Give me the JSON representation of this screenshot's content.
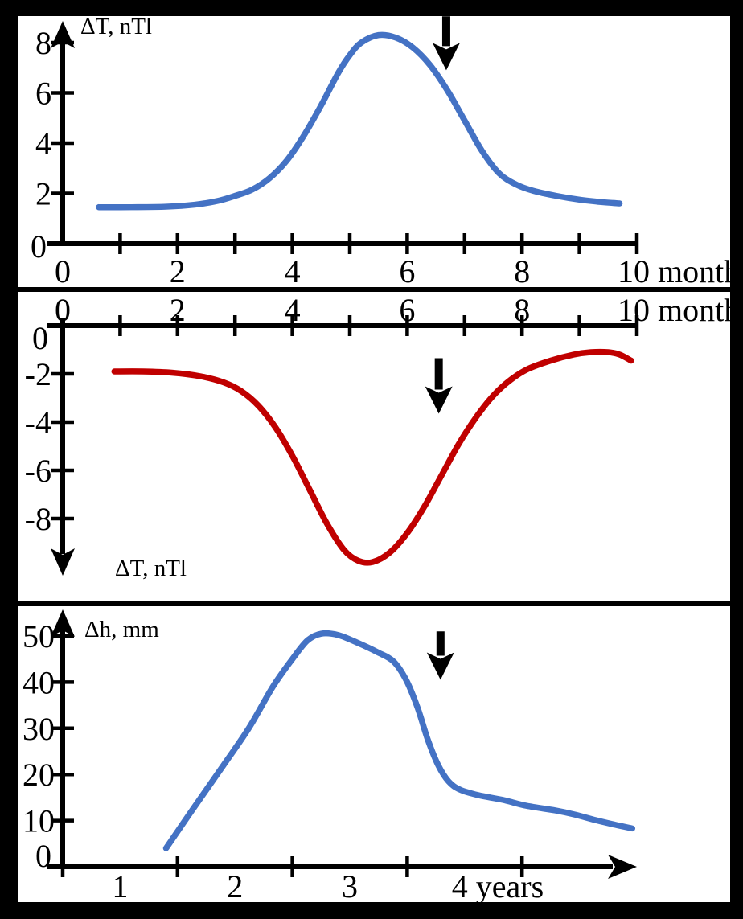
{
  "figure": {
    "background_color": "#000000",
    "panel_background": "#ffffff",
    "axis_color": "#000000"
  },
  "chart_data": [
    {
      "type": "line",
      "title": "",
      "ylabel": "ΔT, nTl",
      "xlabel": "months",
      "color": "#4472C4",
      "y_axis_direction": "up",
      "x_axis_position": "bottom",
      "xlim": [
        0,
        10
      ],
      "ylim": [
        0,
        9
      ],
      "x_tick_marks": [
        1,
        2,
        3,
        4,
        5,
        6,
        7,
        8,
        9,
        10
      ],
      "x_tick_labels": [
        {
          "value": 0,
          "label": "0"
        },
        {
          "value": 2,
          "label": "2"
        },
        {
          "value": 4,
          "label": "4"
        },
        {
          "value": 6,
          "label": "6"
        },
        {
          "value": 8,
          "label": "8"
        },
        {
          "value": 10,
          "label": "10 months"
        }
      ],
      "y_tick_labels": [
        {
          "value": 2,
          "label": "2"
        },
        {
          "value": 4,
          "label": "4"
        },
        {
          "value": 6,
          "label": "6"
        },
        {
          "value": 8,
          "label": "8"
        }
      ],
      "origin_label": "0",
      "points": [
        [
          0.63,
          1.45
        ],
        [
          1.2,
          1.45
        ],
        [
          1.8,
          1.47
        ],
        [
          2.3,
          1.55
        ],
        [
          2.7,
          1.7
        ],
        [
          3.0,
          1.9
        ],
        [
          3.3,
          2.15
        ],
        [
          3.6,
          2.6
        ],
        [
          3.9,
          3.3
        ],
        [
          4.2,
          4.3
        ],
        [
          4.5,
          5.5
        ],
        [
          4.8,
          6.8
        ],
        [
          5.0,
          7.5
        ],
        [
          5.2,
          8.0
        ],
        [
          5.5,
          8.3
        ],
        [
          5.8,
          8.2
        ],
        [
          6.1,
          7.8
        ],
        [
          6.4,
          7.1
        ],
        [
          6.7,
          6.1
        ],
        [
          7.0,
          4.9
        ],
        [
          7.3,
          3.7
        ],
        [
          7.6,
          2.8
        ],
        [
          7.9,
          2.35
        ],
        [
          8.2,
          2.1
        ],
        [
          8.6,
          1.9
        ],
        [
          9.0,
          1.75
        ],
        [
          9.4,
          1.65
        ],
        [
          9.7,
          1.6
        ]
      ],
      "event_arrow": {
        "x": 6.68,
        "from_y": 9.05,
        "to_y": 6.9
      }
    },
    {
      "type": "line",
      "title": "",
      "ylabel": "ΔT, nTl",
      "xlabel": "months",
      "color": "#C00000",
      "y_axis_direction": "down",
      "x_axis_position": "top",
      "xlim": [
        0,
        10
      ],
      "ylim": [
        -10,
        0
      ],
      "x_tick_marks": [
        1,
        2,
        3,
        4,
        5,
        6,
        7,
        8,
        9,
        10
      ],
      "x_tick_labels": [
        {
          "value": 0,
          "label": "0"
        },
        {
          "value": 2,
          "label": "2"
        },
        {
          "value": 4,
          "label": "4"
        },
        {
          "value": 6,
          "label": "6"
        },
        {
          "value": 8,
          "label": "8"
        },
        {
          "value": 10,
          "label": "10 months"
        }
      ],
      "y_tick_labels": [
        {
          "value": -2,
          "label": "-2"
        },
        {
          "value": -4,
          "label": "-4"
        },
        {
          "value": -6,
          "label": "-6"
        },
        {
          "value": -8,
          "label": "-8"
        }
      ],
      "origin_label": "0",
      "points": [
        [
          0.9,
          -1.9
        ],
        [
          1.4,
          -1.9
        ],
        [
          1.9,
          -1.95
        ],
        [
          2.4,
          -2.1
        ],
        [
          2.8,
          -2.35
        ],
        [
          3.1,
          -2.7
        ],
        [
          3.4,
          -3.3
        ],
        [
          3.7,
          -4.2
        ],
        [
          4.0,
          -5.4
        ],
        [
          4.3,
          -6.8
        ],
        [
          4.6,
          -8.2
        ],
        [
          4.9,
          -9.3
        ],
        [
          5.15,
          -9.75
        ],
        [
          5.4,
          -9.8
        ],
        [
          5.7,
          -9.4
        ],
        [
          6.0,
          -8.6
        ],
        [
          6.3,
          -7.5
        ],
        [
          6.6,
          -6.2
        ],
        [
          6.9,
          -4.9
        ],
        [
          7.2,
          -3.8
        ],
        [
          7.5,
          -2.9
        ],
        [
          7.8,
          -2.25
        ],
        [
          8.1,
          -1.8
        ],
        [
          8.5,
          -1.45
        ],
        [
          8.9,
          -1.2
        ],
        [
          9.2,
          -1.1
        ],
        [
          9.5,
          -1.1
        ],
        [
          9.7,
          -1.2
        ],
        [
          9.9,
          -1.45
        ]
      ],
      "event_arrow": {
        "x": 6.55,
        "from_y": -1.35,
        "to_y": -3.65
      }
    },
    {
      "type": "line",
      "title": "",
      "ylabel": "Δh, mm",
      "xlabel": "years",
      "color": "#4472C4",
      "y_axis_direction": "up",
      "x_axis_position": "bottom",
      "xlim": [
        0.5,
        5.5
      ],
      "ylim": [
        0,
        55
      ],
      "x_tick_marks": [
        0.5,
        1.5,
        2.5,
        3.5,
        4.5
      ],
      "x_tick_labels": [
        {
          "value": 1,
          "label": "1"
        },
        {
          "value": 2,
          "label": "2"
        },
        {
          "value": 3,
          "label": "3"
        },
        {
          "value": 4,
          "label": "4 years"
        }
      ],
      "y_tick_labels": [
        {
          "value": 10,
          "label": "10"
        },
        {
          "value": 20,
          "label": "20"
        },
        {
          "value": 30,
          "label": "30"
        },
        {
          "value": 40,
          "label": "40"
        },
        {
          "value": 50,
          "label": "50"
        }
      ],
      "origin_label": "0",
      "points": [
        [
          1.4,
          4
        ],
        [
          1.62,
          12
        ],
        [
          1.9,
          22
        ],
        [
          2.12,
          30
        ],
        [
          2.33,
          39
        ],
        [
          2.5,
          45
        ],
        [
          2.63,
          49
        ],
        [
          2.75,
          50.5
        ],
        [
          2.9,
          50.2
        ],
        [
          3.07,
          48.5
        ],
        [
          3.24,
          46.5
        ],
        [
          3.38,
          44.5
        ],
        [
          3.49,
          40.5
        ],
        [
          3.59,
          34.5
        ],
        [
          3.68,
          27.5
        ],
        [
          3.77,
          22
        ],
        [
          3.86,
          18.5
        ],
        [
          3.96,
          16.7
        ],
        [
          4.12,
          15.5
        ],
        [
          4.33,
          14.5
        ],
        [
          4.54,
          13.2
        ],
        [
          4.79,
          12.2
        ],
        [
          4.96,
          11.3
        ],
        [
          5.14,
          10.1
        ],
        [
          5.31,
          9.1
        ],
        [
          5.46,
          8.3
        ]
      ],
      "event_arrow": {
        "x": 3.79,
        "from_y": 51.0,
        "to_y": 40.5
      }
    }
  ]
}
